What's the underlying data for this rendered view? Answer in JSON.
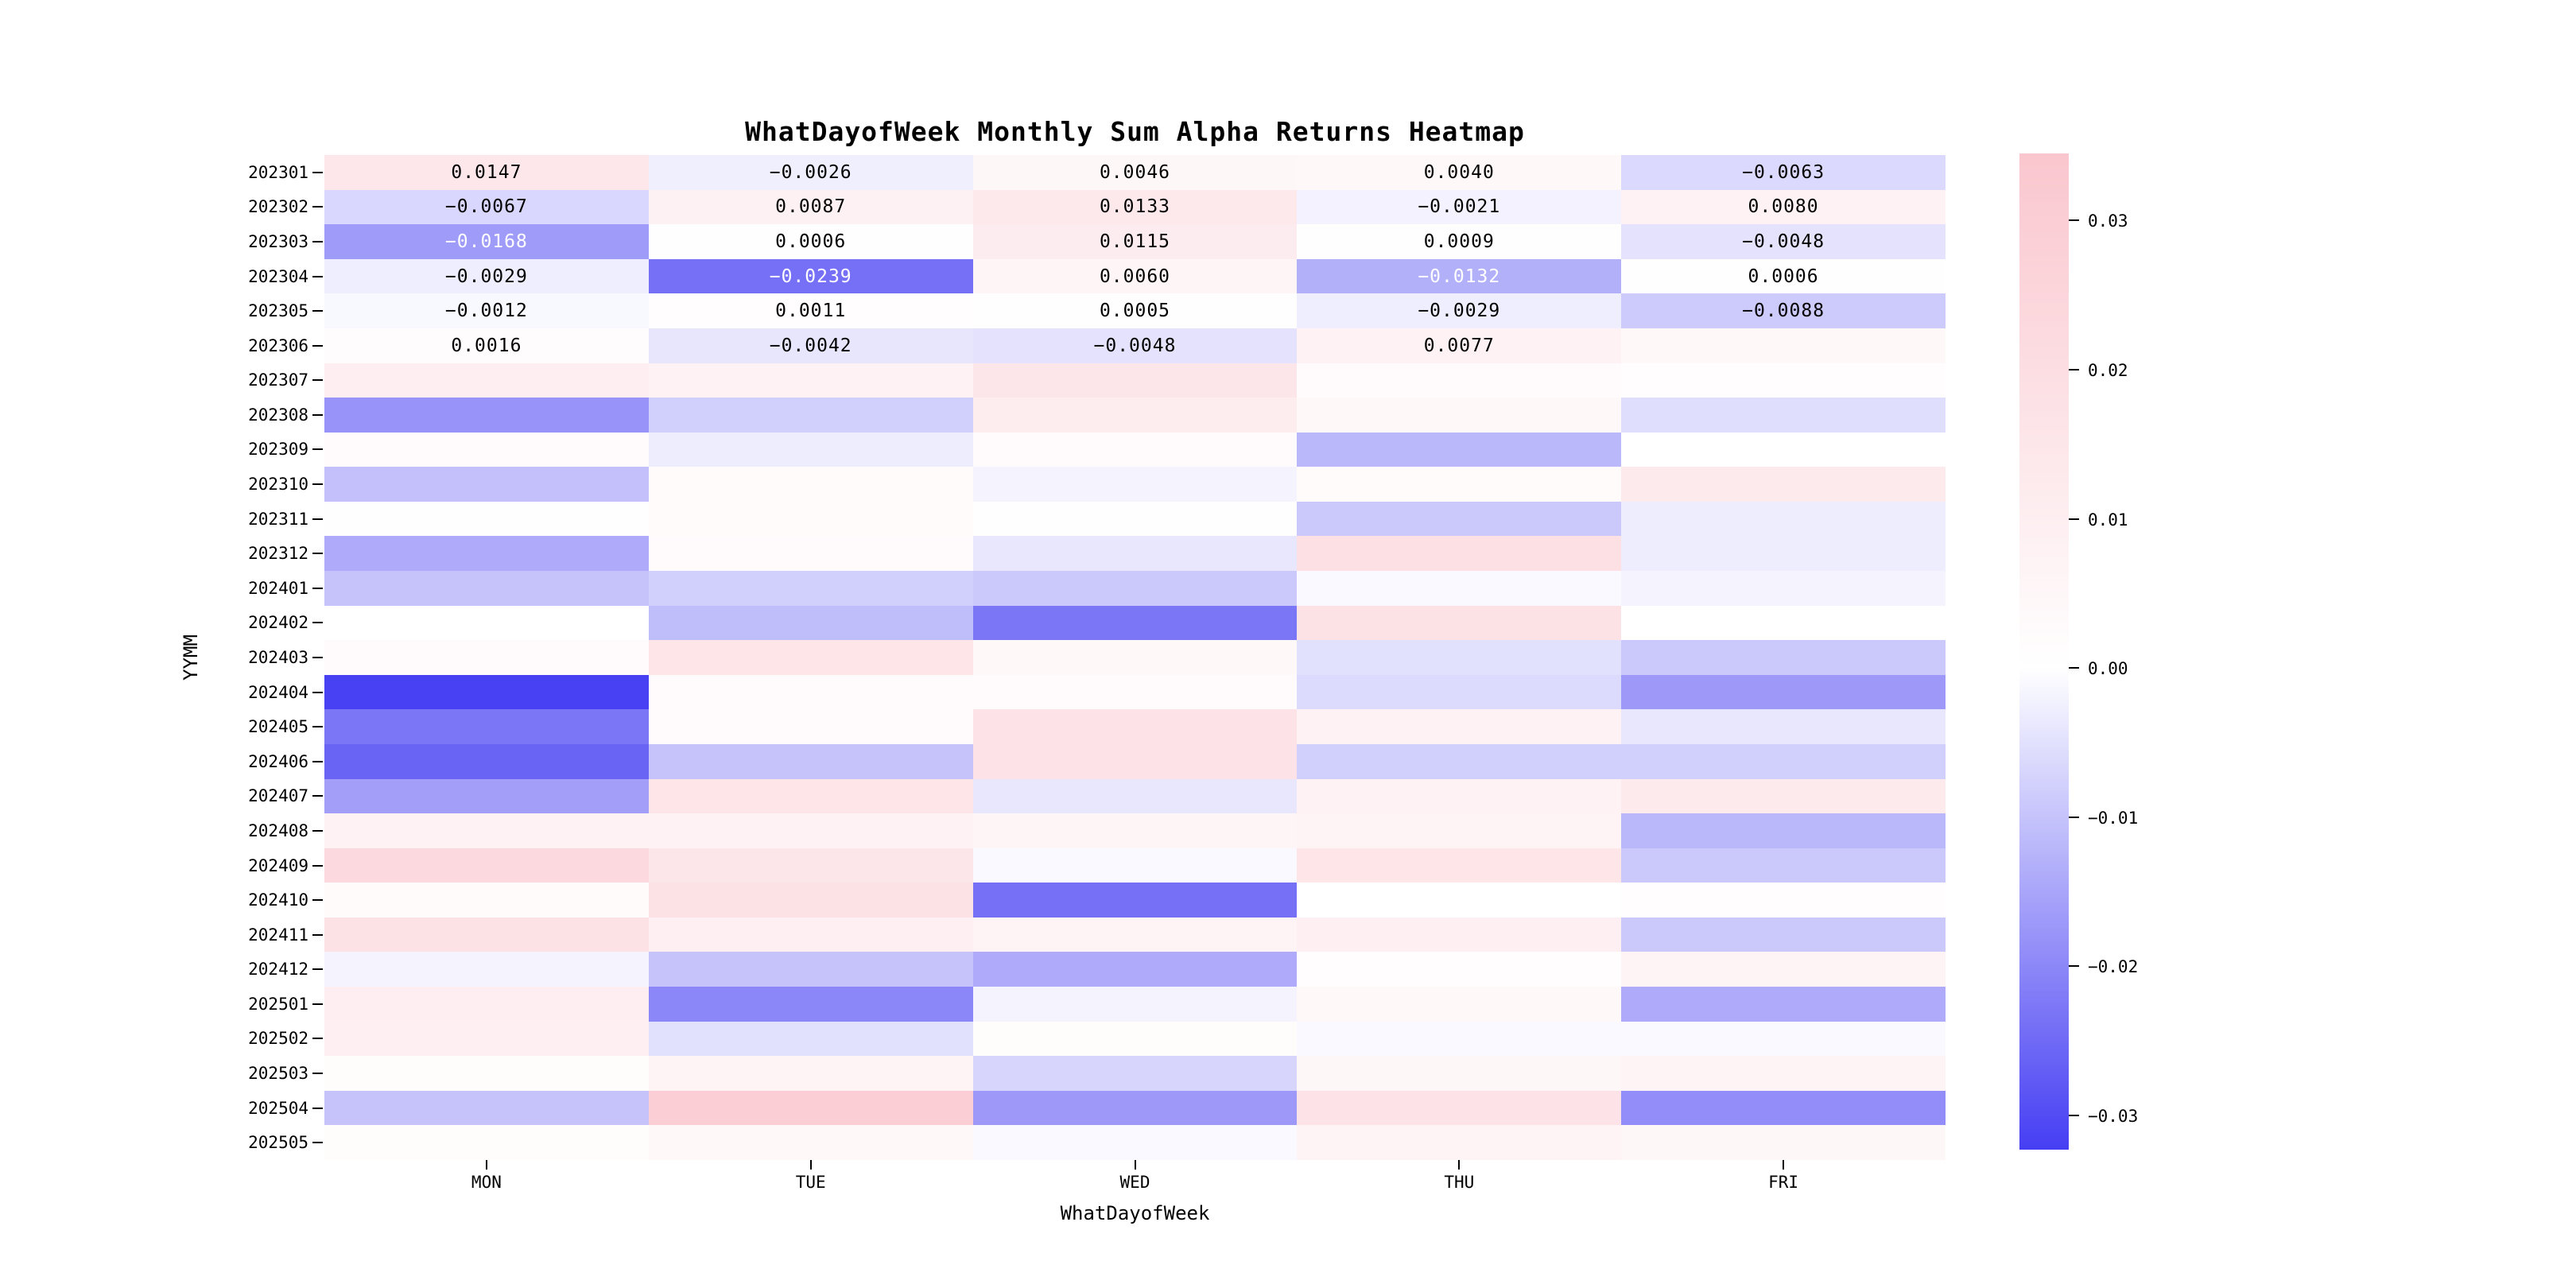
{
  "chart_data": {
    "type": "heatmap",
    "title": "WhatDayofWeek Monthly Sum Alpha Returns Heatmap",
    "xlabel": "WhatDayofWeek",
    "ylabel": "YYMM",
    "columns": [
      "MON",
      "TUE",
      "WED",
      "THU",
      "FRI"
    ],
    "rows": [
      "202301",
      "202302",
      "202303",
      "202304",
      "202305",
      "202306",
      "202307",
      "202308",
      "202309",
      "202310",
      "202311",
      "202312",
      "202401",
      "202402",
      "202403",
      "202404",
      "202405",
      "202406",
      "202407",
      "202408",
      "202409",
      "202410",
      "202411",
      "202412",
      "202501",
      "202502",
      "202503",
      "202504",
      "202505"
    ],
    "values": [
      [
        0.0147,
        -0.0026,
        0.0046,
        0.004,
        -0.0063
      ],
      [
        -0.0067,
        0.0087,
        0.0133,
        -0.0021,
        0.008
      ],
      [
        -0.0168,
        0.0006,
        0.0115,
        0.0009,
        -0.0048
      ],
      [
        -0.0029,
        -0.0239,
        0.006,
        -0.0132,
        0.0006
      ],
      [
        -0.0012,
        0.0011,
        0.0005,
        -0.0029,
        -0.0088
      ],
      [
        0.0016,
        -0.0042,
        -0.0048,
        0.0077,
        0.004
      ],
      [
        0.01,
        0.008,
        0.015,
        0.003,
        0.001
      ],
      [
        -0.018,
        -0.008,
        0.011,
        0.004,
        -0.0055
      ],
      [
        0.003,
        -0.003,
        0.003,
        -0.012,
        0.0
      ],
      [
        -0.0105,
        0.0025,
        -0.002,
        0.0025,
        0.013
      ],
      [
        0.0005,
        0.0025,
        0.0005,
        -0.009,
        -0.003
      ],
      [
        -0.014,
        0.003,
        -0.004,
        0.019,
        -0.003
      ],
      [
        -0.01,
        -0.008,
        -0.009,
        -0.001,
        -0.002
      ],
      [
        0.0,
        -0.011,
        -0.023,
        0.018,
        0.0
      ],
      [
        0.003,
        0.016,
        0.004,
        -0.005,
        -0.009
      ],
      [
        -0.032,
        0.003,
        0.003,
        -0.006,
        -0.017
      ],
      [
        -0.023,
        0.003,
        0.017,
        0.008,
        -0.004
      ],
      [
        -0.026,
        -0.01,
        0.017,
        -0.008,
        -0.008
      ],
      [
        -0.016,
        0.016,
        -0.004,
        0.008,
        0.013
      ],
      [
        0.008,
        0.008,
        0.006,
        0.007,
        -0.012
      ],
      [
        0.023,
        0.015,
        -0.001,
        0.016,
        -0.009
      ],
      [
        0.0025,
        0.018,
        -0.024,
        0.0,
        0.001
      ],
      [
        0.018,
        0.009,
        0.007,
        0.009,
        -0.009
      ],
      [
        -0.002,
        -0.01,
        -0.014,
        0.001,
        0.007
      ],
      [
        0.01,
        -0.02,
        -0.002,
        0.004,
        -0.014
      ],
      [
        0.009,
        -0.005,
        0.002,
        -0.001,
        -0.001
      ],
      [
        0.002,
        0.007,
        -0.007,
        0.005,
        0.007
      ],
      [
        -0.01,
        0.03,
        -0.017,
        0.017,
        -0.019
      ],
      [
        0.002,
        0.004,
        -0.001,
        0.007,
        0.005
      ]
    ],
    "annotations": [
      [
        "0.0147",
        "−0.0026",
        "0.0046",
        "0.0040",
        "−0.0063"
      ],
      [
        "−0.0067",
        "0.0087",
        "0.0133",
        "−0.0021",
        "0.0080"
      ],
      [
        "−0.0168",
        "0.0006",
        "0.0115",
        "0.0009",
        "−0.0048"
      ],
      [
        "−0.0029",
        "−0.0239",
        "0.0060",
        "−0.0132",
        "0.0006"
      ],
      [
        "−0.0012",
        "0.0011",
        "0.0005",
        "−0.0029",
        "−0.0088"
      ],
      [
        "0.0016",
        "−0.0042",
        "−0.0048",
        "0.0077",
        null
      ]
    ],
    "annotation_white_text_threshold": -0.013,
    "colormap": {
      "vmin": -0.0323,
      "vmax": 0.0345,
      "center_value": 0,
      "negative_color": "#463EF3",
      "center_color": "#FFFFFF",
      "positive_color": "#FAC6CE"
    },
    "colorbar": {
      "tick_labels": [
        "0.03",
        "0.02",
        "0.01",
        "0.00",
        "−0.01",
        "−0.02",
        "−0.03"
      ],
      "tick_values": [
        0.03,
        0.02,
        0.01,
        0.0,
        -0.01,
        -0.02,
        -0.03
      ],
      "orientation": "vertical",
      "position": "right"
    },
    "grid": false,
    "legend": false
  }
}
